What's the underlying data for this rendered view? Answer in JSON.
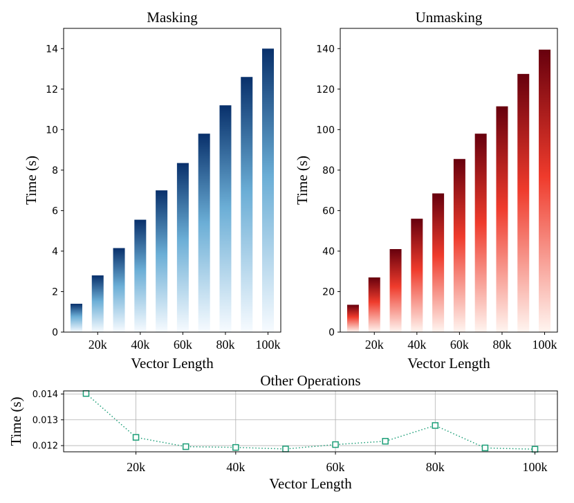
{
  "chart_data": [
    {
      "type": "bar",
      "title": "Masking",
      "xlabel": "Vector Length",
      "ylabel": "Time (s)",
      "categories": [
        "10k",
        "20k",
        "30k",
        "40k",
        "50k",
        "60k",
        "70k",
        "80k",
        "90k",
        "100k"
      ],
      "x": [
        10000,
        20000,
        30000,
        40000,
        50000,
        60000,
        70000,
        80000,
        90000,
        100000
      ],
      "values": [
        1.4,
        2.8,
        4.15,
        5.55,
        7.0,
        8.35,
        9.8,
        11.2,
        12.6,
        14.0
      ],
      "xticks": [
        20000,
        40000,
        60000,
        80000,
        100000
      ],
      "xtick_labels": [
        "20k",
        "40k",
        "60k",
        "80k",
        "100k"
      ],
      "yticks": [
        0,
        2,
        4,
        6,
        8,
        10,
        12,
        14
      ],
      "ytick_labels": [
        "0",
        "2",
        "4",
        "6",
        "8",
        "10",
        "12",
        "14"
      ],
      "ylim": [
        0,
        15
      ],
      "xlim": [
        4000,
        106000
      ],
      "colormap": {
        "top": "#08306b",
        "mid": "#6baed6",
        "bottom": "#f7fbff"
      },
      "grid": false
    },
    {
      "type": "bar",
      "title": "Unmasking",
      "xlabel": "Vector Length",
      "ylabel": "Time (s)",
      "categories": [
        "10k",
        "20k",
        "30k",
        "40k",
        "50k",
        "60k",
        "70k",
        "80k",
        "90k",
        "100k"
      ],
      "x": [
        10000,
        20000,
        30000,
        40000,
        50000,
        60000,
        70000,
        80000,
        90000,
        100000
      ],
      "values": [
        13.5,
        27,
        41,
        56,
        68.5,
        85.5,
        98,
        111.5,
        127.5,
        139.5
      ],
      "xticks": [
        20000,
        40000,
        60000,
        80000,
        100000
      ],
      "xtick_labels": [
        "20k",
        "40k",
        "60k",
        "80k",
        "100k"
      ],
      "yticks": [
        0,
        20,
        40,
        60,
        80,
        100,
        120,
        140
      ],
      "ytick_labels": [
        "0",
        "20",
        "40",
        "60",
        "80",
        "100",
        "120",
        "140"
      ],
      "ylim": [
        0,
        150
      ],
      "xlim": [
        4000,
        106000
      ],
      "colormap": {
        "top": "#67000d",
        "mid": "#ef3b2c",
        "bottom": "#fff5f0"
      },
      "grid": false
    },
    {
      "type": "line",
      "title": "Other Operations",
      "xlabel": "Vector Length",
      "ylabel": "Time (s)",
      "x": [
        10000,
        20000,
        30000,
        40000,
        50000,
        60000,
        70000,
        80000,
        90000,
        100000
      ],
      "values": [
        0.01402,
        0.01232,
        0.01196,
        0.01193,
        0.01187,
        0.01204,
        0.01217,
        0.01278,
        0.01191,
        0.01186
      ],
      "xticks": [
        20000,
        40000,
        60000,
        80000,
        100000
      ],
      "xtick_labels": [
        "20k",
        "40k",
        "60k",
        "80k",
        "100k"
      ],
      "yticks": [
        0.012,
        0.013,
        0.014
      ],
      "ytick_labels": [
        "0.012",
        "0.013",
        "0.014"
      ],
      "ylim": [
        0.01176,
        0.01412
      ],
      "xlim": [
        5500,
        104500
      ],
      "color": "#1b9e77",
      "marker": "square",
      "linestyle": "dotted",
      "grid": true
    }
  ]
}
